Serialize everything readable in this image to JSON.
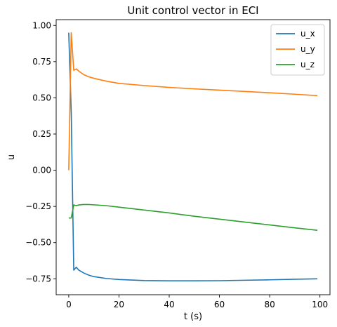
{
  "chart_data": {
    "type": "line",
    "title": "Unit control vector in ECI",
    "xlabel": "t (s)",
    "ylabel": "u",
    "xlim": [
      -5,
      104
    ],
    "ylim": [
      -0.86,
      1.04
    ],
    "xticks": [
      0,
      20,
      40,
      60,
      80,
      100
    ],
    "yticks": [
      -0.75,
      -0.5,
      -0.25,
      0.0,
      0.25,
      0.5,
      0.75,
      1.0
    ],
    "xtick_labels": [
      "0",
      "20",
      "40",
      "60",
      "80",
      "100"
    ],
    "ytick_labels": [
      "−0.75",
      "−0.50",
      "−0.25",
      "0.00",
      "0.25",
      "0.50",
      "0.75",
      "1.00"
    ],
    "grid": false,
    "legend_position": "top-right",
    "series": [
      {
        "name": "u_x",
        "color": "#1f77b4",
        "x": [
          0,
          1,
          2,
          3,
          4,
          5,
          6,
          8,
          10,
          15,
          20,
          30,
          40,
          50,
          60,
          70,
          80,
          90,
          99
        ],
        "y": [
          0.95,
          0.4,
          -0.69,
          -0.67,
          -0.69,
          -0.7,
          -0.71,
          -0.725,
          -0.735,
          -0.748,
          -0.755,
          -0.762,
          -0.764,
          -0.764,
          -0.763,
          -0.76,
          -0.757,
          -0.753,
          -0.75
        ]
      },
      {
        "name": "u_y",
        "color": "#ff7f0e",
        "x": [
          0,
          1,
          2,
          3,
          4,
          5,
          6,
          8,
          10,
          15,
          20,
          30,
          40,
          50,
          60,
          70,
          80,
          90,
          99
        ],
        "y": [
          0.0,
          0.95,
          0.69,
          0.7,
          0.685,
          0.672,
          0.66,
          0.645,
          0.635,
          0.615,
          0.6,
          0.585,
          0.572,
          0.562,
          0.553,
          0.544,
          0.535,
          0.525,
          0.515
        ]
      },
      {
        "name": "u_z",
        "color": "#2ca02c",
        "x": [
          0,
          1,
          2,
          3,
          4,
          5,
          6,
          8,
          10,
          15,
          20,
          30,
          40,
          50,
          60,
          70,
          80,
          90,
          99
        ],
        "y": [
          -0.33,
          -0.33,
          -0.24,
          -0.245,
          -0.24,
          -0.238,
          -0.237,
          -0.237,
          -0.239,
          -0.245,
          -0.255,
          -0.275,
          -0.295,
          -0.318,
          -0.338,
          -0.358,
          -0.378,
          -0.398,
          -0.415
        ]
      }
    ]
  }
}
